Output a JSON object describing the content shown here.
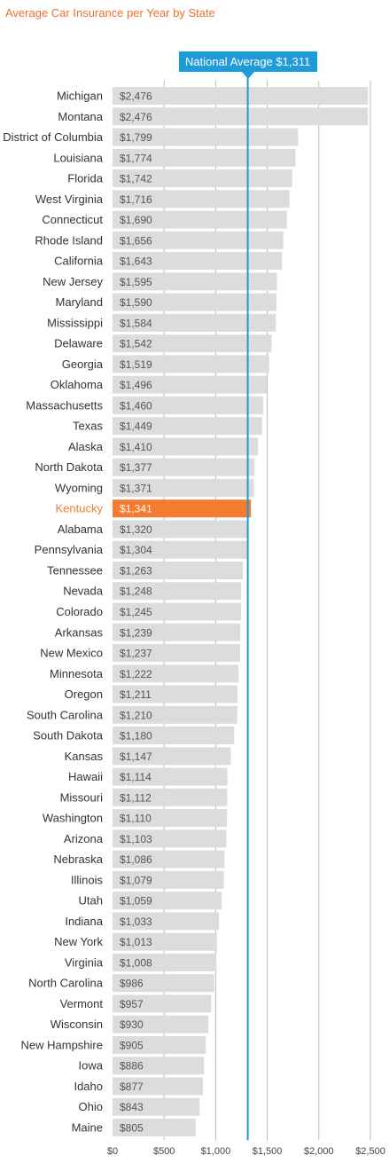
{
  "chart_data": {
    "type": "bar",
    "orientation": "horizontal",
    "title": "Average Car Insurance per Year by State",
    "reference_line": {
      "label": "National Average $1,311",
      "value": 1311
    },
    "xlim": [
      0,
      2500
    ],
    "xticks": [
      0,
      500,
      1000,
      1500,
      2000,
      2500
    ],
    "xtick_labels": [
      "$0",
      "$500",
      "$1,000",
      "$1,500",
      "$2,000",
      "$2,500"
    ],
    "grid": true,
    "highlight": "Kentucky",
    "colors": {
      "bar": "#dcdcdc",
      "highlight": "#f47b30",
      "reference": "#1f9bd8",
      "grid": "#bbbbbb",
      "label": "#333333",
      "value_label": "#555555"
    },
    "categories": [
      "Michigan",
      "Montana",
      "District of Columbia",
      "Louisiana",
      "Florida",
      "West Virginia",
      "Connecticut",
      "Rhode Island",
      "California",
      "New Jersey",
      "Maryland",
      "Mississippi",
      "Delaware",
      "Georgia",
      "Oklahoma",
      "Massachusetts",
      "Texas",
      "Alaska",
      "North Dakota",
      "Wyoming",
      "Kentucky",
      "Alabama",
      "Pennsylvania",
      "Tennessee",
      "Nevada",
      "Colorado",
      "Arkansas",
      "New Mexico",
      "Minnesota",
      "Oregon",
      "South Carolina",
      "South Dakota",
      "Kansas",
      "Hawaii",
      "Missouri",
      "Washington",
      "Arizona",
      "Nebraska",
      "Illinois",
      "Utah",
      "Indiana",
      "New York",
      "Virginia",
      "North Carolina",
      "Vermont",
      "Wisconsin",
      "New Hampshire",
      "Iowa",
      "Idaho",
      "Ohio",
      "Maine"
    ],
    "values": [
      2476,
      2476,
      1799,
      1774,
      1742,
      1716,
      1690,
      1656,
      1643,
      1595,
      1590,
      1584,
      1542,
      1519,
      1496,
      1460,
      1449,
      1410,
      1377,
      1371,
      1341,
      1320,
      1304,
      1263,
      1248,
      1245,
      1239,
      1237,
      1222,
      1211,
      1210,
      1180,
      1147,
      1114,
      1112,
      1110,
      1103,
      1086,
      1079,
      1059,
      1033,
      1013,
      1008,
      986,
      957,
      930,
      905,
      886,
      877,
      843,
      805
    ],
    "value_labels": [
      "$2,476",
      "$2,476",
      "$1,799",
      "$1,774",
      "$1,742",
      "$1,716",
      "$1,690",
      "$1,656",
      "$1,643",
      "$1,595",
      "$1,590",
      "$1,584",
      "$1,542",
      "$1,519",
      "$1,496",
      "$1,460",
      "$1,449",
      "$1,410",
      "$1,377",
      "$1,371",
      "$1,341",
      "$1,320",
      "$1,304",
      "$1,263",
      "$1,248",
      "$1,245",
      "$1,239",
      "$1,237",
      "$1,222",
      "$1,211",
      "$1,210",
      "$1,180",
      "$1,147",
      "$1,114",
      "$1,112",
      "$1,110",
      "$1,103",
      "$1,086",
      "$1,079",
      "$1,059",
      "$1,033",
      "$1,013",
      "$1,008",
      "$986",
      "$957",
      "$930",
      "$905",
      "$886",
      "$877",
      "$843",
      "$805"
    ]
  }
}
